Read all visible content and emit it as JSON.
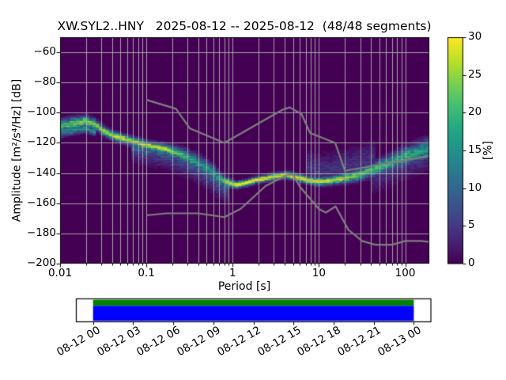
{
  "chart_data": {
    "type": "heatmap",
    "title": "XW.SYL2..HNY   2025-08-12 -- 2025-08-12  (48/48 segments)",
    "station_id": "XW.SYL2..HNY",
    "date_range": "2025-08-12 -- 2025-08-12",
    "segments": "48/48 segments",
    "xlabel": "Period [s]",
    "ylabel": "Amplitude [m²/s⁴/Hz] [dB]",
    "xscale": "log",
    "xlim": [
      0.01,
      190
    ],
    "ylim": [
      -200,
      -50
    ],
    "grid": true,
    "xtick_values": [
      0.01,
      0.1,
      1,
      10,
      100
    ],
    "xtick_labels": [
      "0.01",
      "0.1",
      "1",
      "10",
      "100"
    ],
    "ytick_values": [
      -60,
      -80,
      -100,
      -120,
      -140,
      -160,
      -180,
      -200
    ],
    "ytick_labels": [
      "−60",
      "−80",
      "−100",
      "−120",
      "−140",
      "−160",
      "−180",
      "−200"
    ],
    "background_color": "#440154",
    "grid_color": "#b0b0b0",
    "noise_model_color": "#7f7f7f",
    "colorbar": {
      "label": "[%]",
      "range": [
        0,
        30
      ],
      "tick_values": [
        0,
        5,
        10,
        15,
        20,
        25,
        30
      ],
      "tick_labels": [
        "0",
        "5",
        "10",
        "15",
        "20",
        "25",
        "30"
      ],
      "colormap": "viridis",
      "colormap_stops": [
        "#440154",
        "#482475",
        "#414487",
        "#355f8d",
        "#2a788e",
        "#21918c",
        "#22a884",
        "#44bf70",
        "#7ad151",
        "#bddf26",
        "#fde725"
      ]
    },
    "psd_mode_line": {
      "comment": "bright ridge of the probability histogram: period [s], level [dB], peak probability [%], spread sigma [dB]",
      "periods": [
        0.01,
        0.013,
        0.02,
        0.026,
        0.032,
        0.042,
        0.06,
        0.1,
        0.17,
        0.26,
        0.39,
        0.54,
        0.67,
        0.9,
        1.1,
        1.5,
        2.0,
        3.0,
        4.3,
        6.0,
        8.0,
        10.0,
        14.0,
        20.0,
        28.0,
        40.0,
        55.0,
        75.0,
        100,
        140,
        190
      ],
      "db": [
        -109.0,
        -107.5,
        -105.8,
        -108.0,
        -112.0,
        -115.5,
        -118.0,
        -121.5,
        -124.0,
        -128.0,
        -133.0,
        -138.0,
        -142.5,
        -146.5,
        -148.0,
        -146.3,
        -144.3,
        -142.3,
        -141.3,
        -143.3,
        -144.8,
        -145.8,
        -144.8,
        -143.2,
        -141.5,
        -138.3,
        -135.2,
        -132.0,
        -129.2,
        -126.3,
        -124.0
      ],
      "peak_percent": [
        20,
        22,
        24,
        24,
        25,
        26,
        26,
        27,
        26,
        20,
        16,
        15,
        17,
        26,
        30,
        30,
        30,
        30,
        30,
        29,
        28,
        28,
        27,
        25,
        23,
        21,
        20,
        19,
        18,
        17,
        16
      ],
      "sigma_db": [
        2.6,
        2.4,
        2.2,
        2.0,
        1.9,
        1.8,
        1.8,
        1.8,
        2.0,
        2.6,
        3.2,
        3.2,
        2.6,
        1.6,
        1.3,
        1.3,
        1.3,
        1.4,
        1.4,
        1.4,
        1.5,
        1.6,
        1.7,
        2.0,
        2.3,
        2.7,
        3.0,
        3.4,
        3.8,
        4.2,
        4.5
      ]
    },
    "noise_models": {
      "nhnm": {
        "periods": [
          0.1,
          0.22,
          0.32,
          0.8,
          3.8,
          4.6,
          6.3,
          7.9,
          15.4,
          20.0,
          190.0
        ],
        "db": [
          -91.5,
          -97.4,
          -110.5,
          -120.0,
          -98.0,
          -96.5,
          -101.0,
          -113.5,
          -120.0,
          -138.5,
          -128.7
        ]
      },
      "nlnm": {
        "periods": [
          0.1,
          0.17,
          0.4,
          0.8,
          1.24,
          2.4,
          4.3,
          5.0,
          6.0,
          10.0,
          12.0,
          15.6,
          21.9,
          31.6,
          45.0,
          70.0,
          101.0,
          154.0,
          190.0
        ],
        "db": [
          -168.0,
          -166.7,
          -166.7,
          -169.2,
          -163.7,
          -148.6,
          -141.1,
          -141.1,
          -149.0,
          -163.8,
          -166.2,
          -162.1,
          -177.5,
          -185.0,
          -187.5,
          -187.5,
          -185.0,
          -185.0,
          -185.7
        ]
      }
    },
    "timeline": {
      "tick_labels": [
        "08-12 00",
        "08-12 03",
        "08-12 06",
        "08-12 09",
        "08-12 12",
        "08-12 15",
        "08-12 18",
        "08-12 21",
        "08-13 00"
      ],
      "used_color": "#008000",
      "data_color": "#0000ff",
      "coverage_start": "08-12 00",
      "coverage_end": "08-13 00"
    }
  }
}
